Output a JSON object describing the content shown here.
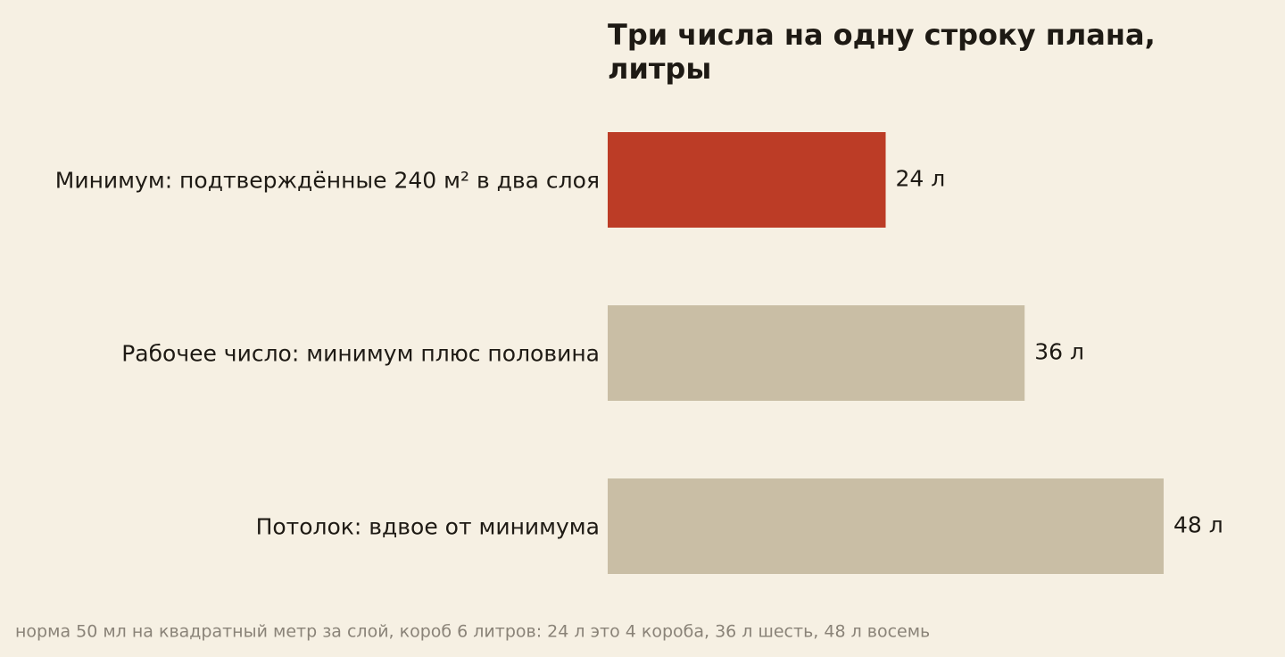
{
  "chart_data": {
    "type": "bar",
    "orientation": "horizontal",
    "title": "Три числа на одну строку плана, литры",
    "categories": [
      "Минимум: подтверждённые 240 м² в два слоя",
      "Рабочее число: минимум плюс половина",
      "Потолок: вдвое от минимума"
    ],
    "values": [
      24,
      36,
      48
    ],
    "value_labels": [
      "24 л",
      "36 л",
      "48 л"
    ],
    "colors": [
      "#bc3c26",
      "#c9bea5",
      "#c9bea5"
    ],
    "note": "норма 50 мл на квадратный метр за слой, короб 6 литров: 24 л это 4 короба, 36 л шесть, 48 л восемь"
  }
}
